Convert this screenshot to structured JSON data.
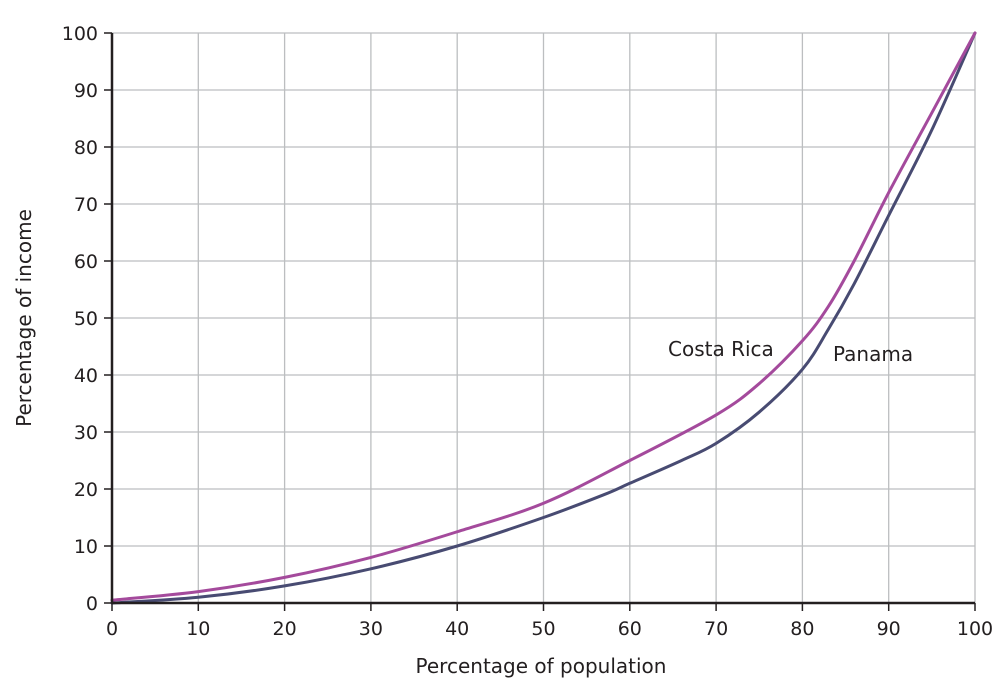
{
  "chart_data": {
    "type": "line",
    "title": "",
    "xlabel": "Percentage of population",
    "ylabel": "Percentage of income",
    "xlim": [
      0,
      100
    ],
    "ylim": [
      0,
      100
    ],
    "xticks": [
      0,
      10,
      20,
      30,
      40,
      50,
      60,
      70,
      80,
      90,
      100
    ],
    "yticks": [
      0,
      10,
      20,
      30,
      40,
      50,
      60,
      70,
      80,
      90,
      100
    ],
    "grid": true,
    "series": [
      {
        "name": "Costa Rica",
        "color": "#a44a9c",
        "x": [
          0,
          10,
          20,
          30,
          40,
          50,
          60,
          70,
          75,
          80,
          83,
          86,
          90,
          95,
          100
        ],
        "y": [
          0.5,
          2,
          4.5,
          8,
          12.5,
          17.5,
          25,
          33,
          38.5,
          46,
          52,
          60,
          72,
          86,
          100
        ]
      },
      {
        "name": "Panama",
        "color": "#484b72",
        "x": [
          0,
          10,
          20,
          30,
          40,
          50,
          57,
          60,
          66,
          70,
          75,
          80,
          83,
          86,
          90,
          95,
          100
        ],
        "y": [
          0,
          1,
          3,
          6,
          10,
          15,
          19,
          21,
          25,
          28,
          33.5,
          41,
          48,
          56,
          68,
          83,
          100
        ]
      }
    ]
  }
}
